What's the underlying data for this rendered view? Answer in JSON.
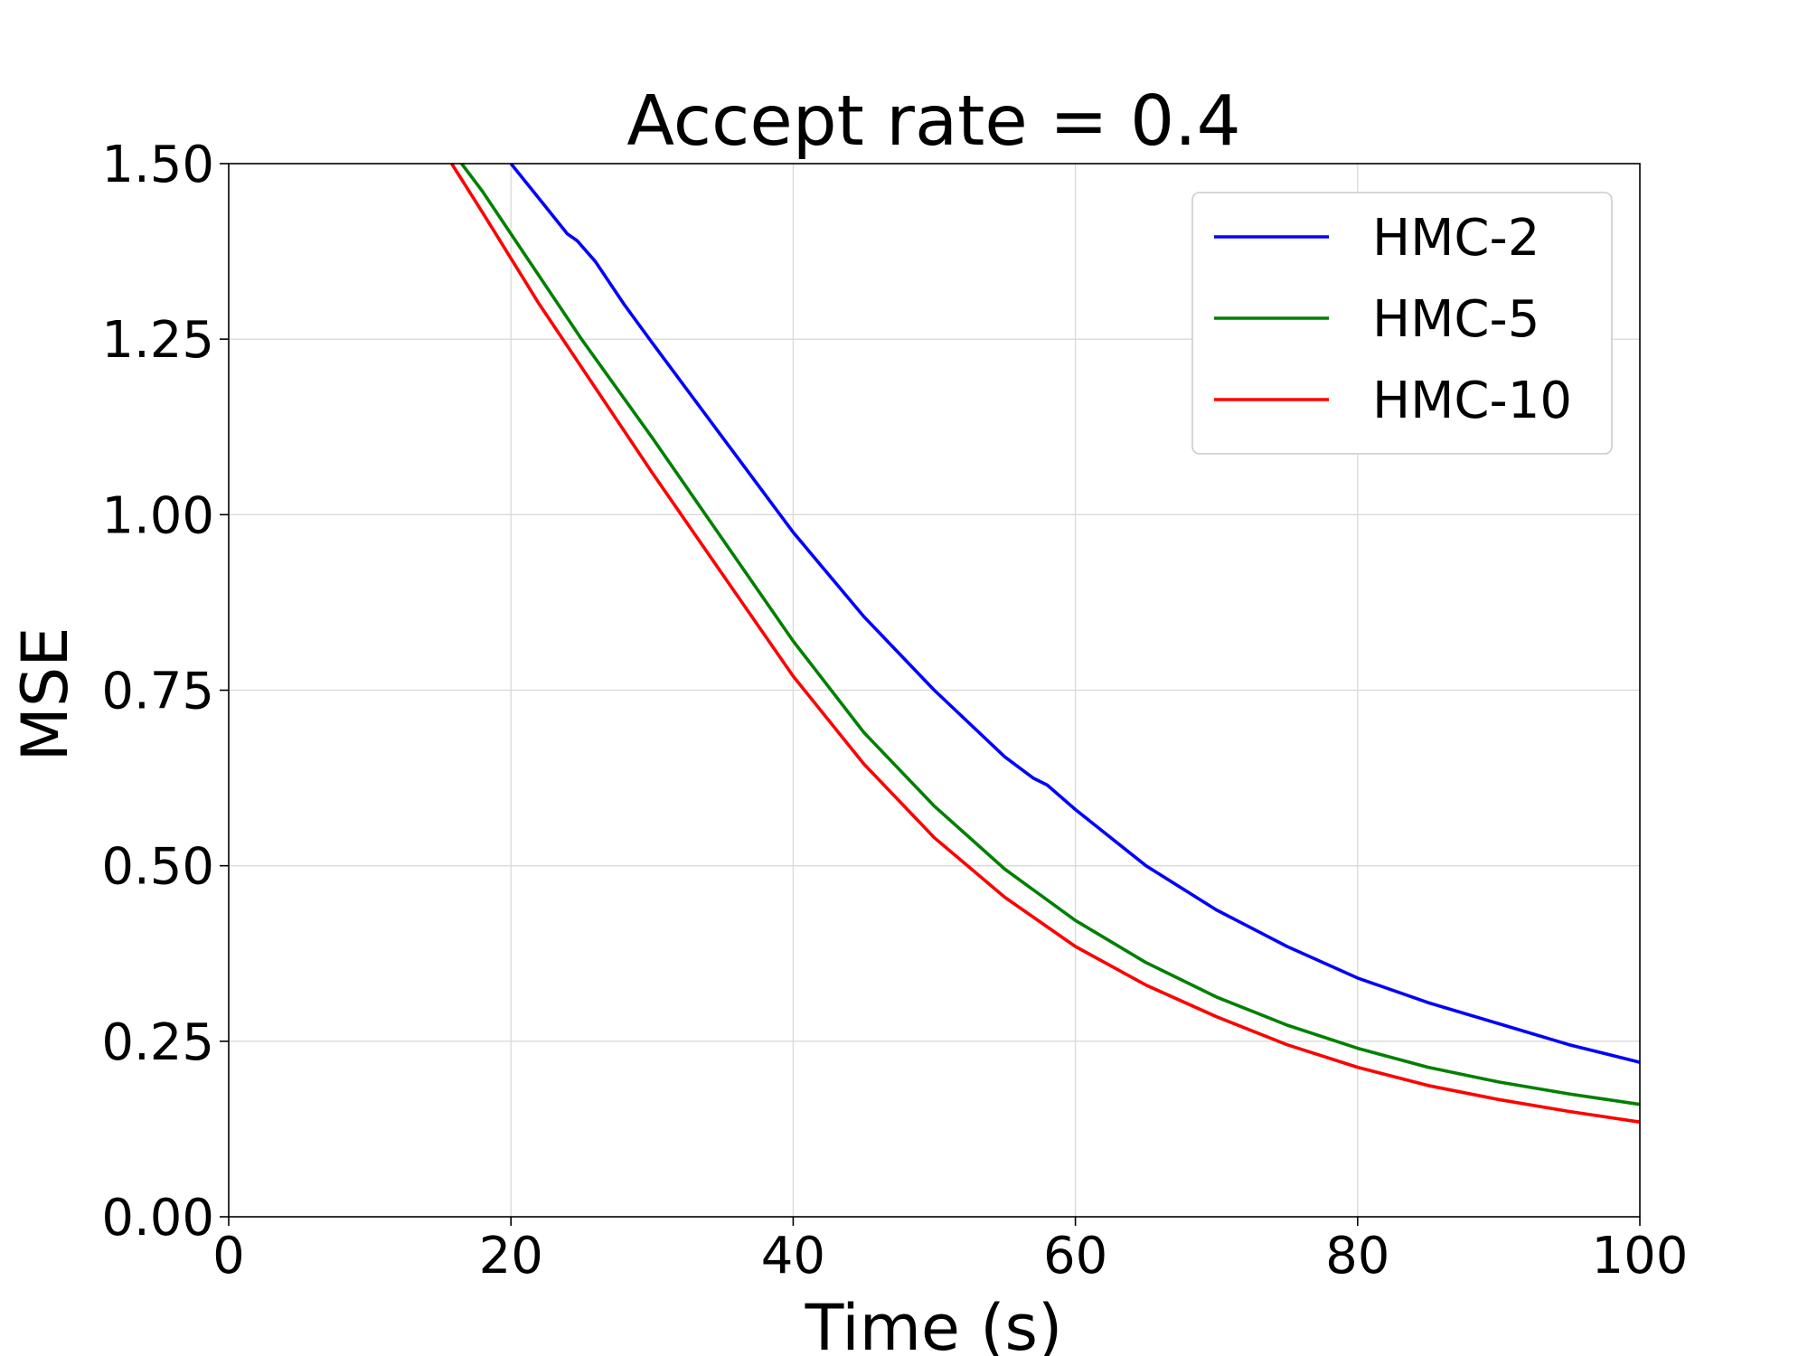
{
  "chart_data": {
    "type": "line",
    "title": "Accept rate = 0.4",
    "xlabel": "Time (s)",
    "ylabel": "MSE",
    "xlim": [
      0,
      100
    ],
    "ylim": [
      0,
      1.5
    ],
    "xticks": [
      0,
      20,
      40,
      60,
      80,
      100
    ],
    "xtick_labels": [
      "0",
      "20",
      "40",
      "60",
      "80",
      "100"
    ],
    "yticks": [
      0,
      0.25,
      0.5,
      0.75,
      1.0,
      1.25,
      1.5
    ],
    "ytick_labels": [
      "0.00",
      "0.25",
      "0.50",
      "0.75",
      "1.00",
      "1.25",
      "1.50"
    ],
    "grid": true,
    "legend_position": "top-right",
    "series": [
      {
        "name": "HMC-2",
        "color": "#0000ff",
        "x": [
          20,
          22,
          24,
          24.7,
          26,
          28,
          30,
          35,
          40,
          45,
          50,
          55,
          57,
          58,
          60,
          65,
          70,
          75,
          80,
          85,
          90,
          95,
          100
        ],
        "y": [
          1.5,
          1.45,
          1.4,
          1.39,
          1.36,
          1.3,
          1.245,
          1.11,
          0.975,
          0.855,
          0.75,
          0.655,
          0.625,
          0.615,
          0.58,
          0.5,
          0.437,
          0.385,
          0.34,
          0.305,
          0.275,
          0.245,
          0.22
        ]
      },
      {
        "name": "HMC-5",
        "color": "#008000",
        "x": [
          16.5,
          18,
          20,
          22,
          25,
          30,
          35,
          40,
          45,
          50,
          55,
          60,
          65,
          70,
          75,
          80,
          85,
          90,
          95,
          100
        ],
        "y": [
          1.5,
          1.46,
          1.4,
          1.34,
          1.25,
          1.11,
          0.965,
          0.82,
          0.69,
          0.585,
          0.495,
          0.422,
          0.362,
          0.313,
          0.273,
          0.24,
          0.213,
          0.192,
          0.175,
          0.16
        ]
      },
      {
        "name": "HMC-10",
        "color": "#ff0000",
        "x": [
          15.8,
          18,
          20,
          22,
          25,
          30,
          35,
          40,
          45,
          50,
          55,
          60,
          65,
          70,
          75,
          80,
          85,
          90,
          95,
          100
        ],
        "y": [
          1.5,
          1.43,
          1.365,
          1.3,
          1.21,
          1.06,
          0.915,
          0.77,
          0.645,
          0.54,
          0.455,
          0.385,
          0.33,
          0.285,
          0.245,
          0.213,
          0.187,
          0.167,
          0.15,
          0.135
        ]
      }
    ]
  }
}
